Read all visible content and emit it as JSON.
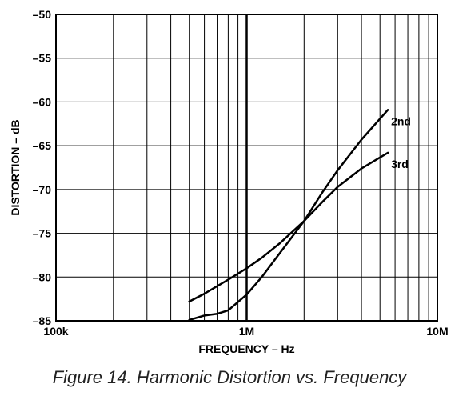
{
  "chart_data": {
    "type": "line",
    "title": "",
    "xlabel": "FREQUENCY – Hz",
    "ylabel": "DISTORTION – dB",
    "x_scale": "log",
    "xlim": [
      100000,
      10000000
    ],
    "ylim": [
      -85,
      -50
    ],
    "x_ticks": [
      {
        "value": 100000,
        "label": "100k"
      },
      {
        "value": 1000000,
        "label": "1M"
      },
      {
        "value": 10000000,
        "label": "10M"
      }
    ],
    "y_ticks": [
      {
        "value": -50,
        "label": "–50"
      },
      {
        "value": -55,
        "label": "–55"
      },
      {
        "value": -60,
        "label": "–60"
      },
      {
        "value": -65,
        "label": "–65"
      },
      {
        "value": -70,
        "label": "–70"
      },
      {
        "value": -75,
        "label": "–75"
      },
      {
        "value": -80,
        "label": "–80"
      },
      {
        "value": -85,
        "label": "–85"
      }
    ],
    "grid": true,
    "series": [
      {
        "name": "2nd",
        "x": [
          500000,
          600000,
          700000,
          800000,
          1000000,
          1200000,
          1500000,
          2000000,
          2500000,
          3000000,
          4000000,
          5500000
        ],
        "y": [
          -84.9,
          -84.4,
          -84.2,
          -83.8,
          -82.0,
          -80.0,
          -77.2,
          -73.6,
          -70.3,
          -67.8,
          -64.3,
          -60.9
        ]
      },
      {
        "name": "3rd",
        "x": [
          500000,
          600000,
          800000,
          1000000,
          1200000,
          1500000,
          2000000,
          2500000,
          3000000,
          4000000,
          5500000
        ],
        "y": [
          -82.8,
          -81.9,
          -80.3,
          -79.0,
          -77.8,
          -76.1,
          -73.6,
          -71.4,
          -69.7,
          -67.6,
          -65.8
        ]
      }
    ]
  },
  "caption": "Figure 14.  Harmonic Distortion vs. Frequency"
}
